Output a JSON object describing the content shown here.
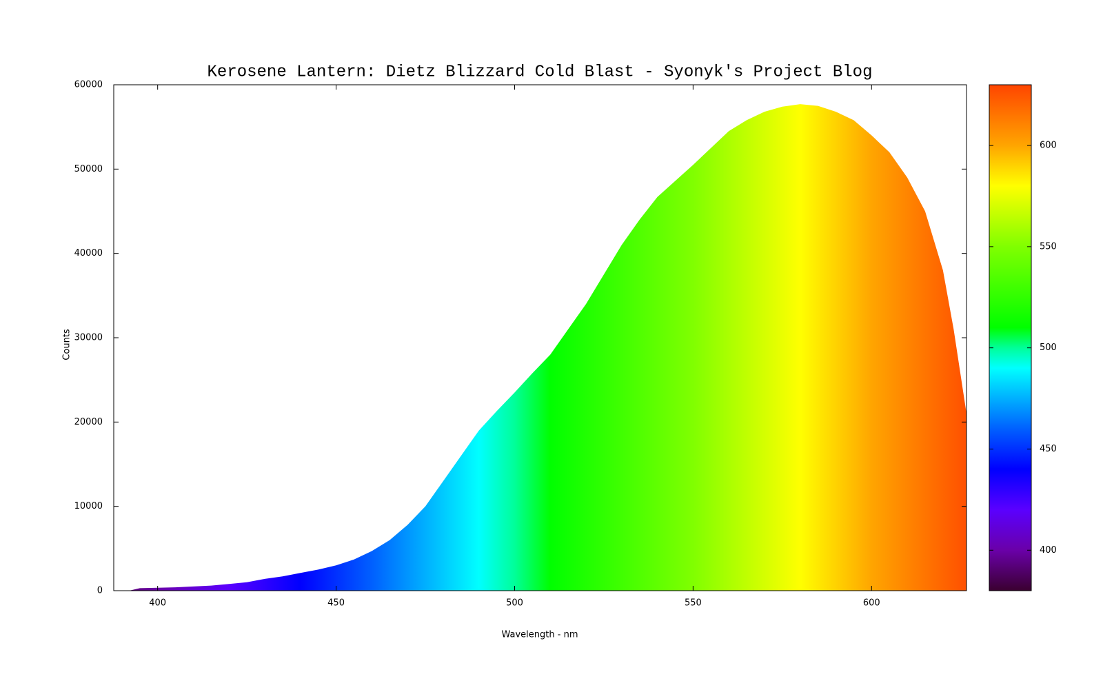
{
  "chart_data": {
    "type": "area",
    "title": "Kerosene Lantern: Dietz Blizzard Cold Blast - Syonyk's Project Blog",
    "x_label": "Wavelength - nm",
    "y_label": "Counts",
    "x": [
      392,
      395,
      400,
      405,
      410,
      415,
      420,
      425,
      430,
      435,
      440,
      445,
      450,
      455,
      460,
      465,
      470,
      475,
      480,
      485,
      490,
      495,
      500,
      505,
      510,
      515,
      520,
      525,
      530,
      535,
      540,
      545,
      550,
      555,
      560,
      565,
      570,
      575,
      580,
      585,
      590,
      595,
      600,
      605,
      610,
      615,
      620,
      623,
      626.6
    ],
    "values": [
      0,
      300,
      350,
      400,
      500,
      600,
      800,
      1000,
      1400,
      1700,
      2100,
      2500,
      3000,
      3700,
      4700,
      6000,
      7800,
      10000,
      13000,
      16000,
      19000,
      21300,
      23500,
      25800,
      28000,
      31000,
      34000,
      37500,
      41000,
      44000,
      46700,
      48600,
      50500,
      52500,
      54500,
      55800,
      56800,
      57400,
      57700,
      57500,
      56800,
      55800,
      54000,
      52000,
      49000,
      45000,
      38000,
      31000,
      21000
    ],
    "xlim": [
      387.7,
      626.6
    ],
    "ylim": [
      0,
      60000
    ],
    "xticks": [
      400,
      450,
      500,
      550,
      600
    ],
    "yticks": [
      0,
      10000,
      20000,
      30000,
      40000,
      50000,
      60000
    ],
    "colorbar": {
      "lim": [
        380,
        630
      ],
      "ticks": [
        400,
        450,
        500,
        550,
        600
      ],
      "colormap": [
        {
          "value": 380,
          "color": "#3a0030"
        },
        {
          "value": 400,
          "color": "#6a00a8"
        },
        {
          "value": 420,
          "color": "#5a00ff"
        },
        {
          "value": 440,
          "color": "#0000ff"
        },
        {
          "value": 460,
          "color": "#0060ff"
        },
        {
          "value": 490,
          "color": "#00ffff"
        },
        {
          "value": 500,
          "color": "#00ff99"
        },
        {
          "value": 510,
          "color": "#00ff00"
        },
        {
          "value": 550,
          "color": "#80ff00"
        },
        {
          "value": 580,
          "color": "#ffff00"
        },
        {
          "value": 600,
          "color": "#ffa500"
        },
        {
          "value": 630,
          "color": "#ff4500"
        }
      ]
    }
  }
}
